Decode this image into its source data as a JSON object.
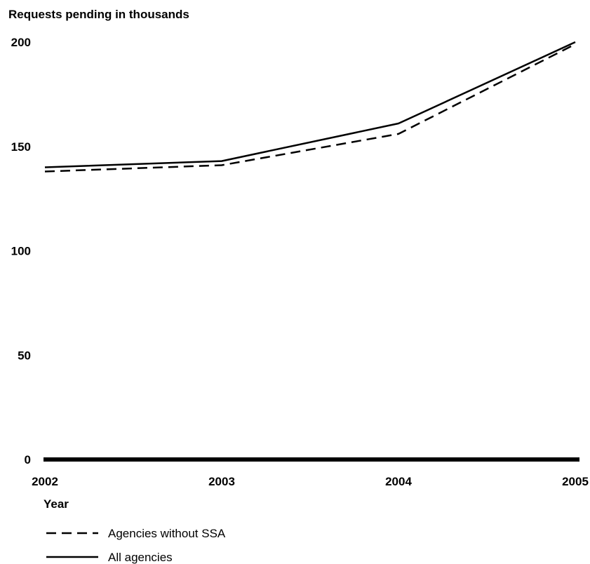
{
  "chart_data": {
    "type": "line",
    "ylabel": "Requests pending in thousands",
    "xlabel": "Year",
    "x": [
      "2002",
      "2003",
      "2004",
      "2005"
    ],
    "y_ticks": [
      "0",
      "50",
      "100",
      "150",
      "200"
    ],
    "ylim": [
      0,
      200
    ],
    "grid": false,
    "legend_position": "bottom-left",
    "series": [
      {
        "name": "Agencies without SSA",
        "style": "dashed",
        "values": [
          138,
          141,
          156,
          199
        ]
      },
      {
        "name": "All agencies",
        "style": "solid",
        "values": [
          140,
          143,
          161,
          200
        ]
      }
    ]
  }
}
